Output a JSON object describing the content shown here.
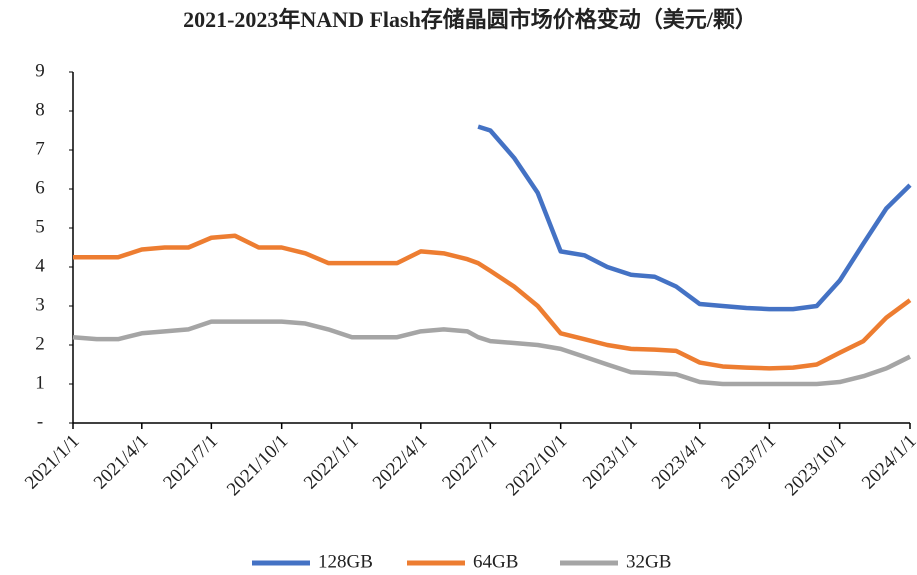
{
  "chart_data": {
    "type": "line",
    "title": "2021-2023年NAND Flash存储晶圆市场价格变动（美元/颗）",
    "x": [
      "2021/1/1",
      "2021/2/1",
      "2021/3/1",
      "2021/4/1",
      "2021/5/1",
      "2021/6/1",
      "2021/7/1",
      "2021/8/1",
      "2021/9/1",
      "2021/10/1",
      "2021/11/1",
      "2021/12/1",
      "2022/1/1",
      "2022/2/1",
      "2022/3/1",
      "2022/4/1",
      "2022/5/1",
      "2022/6/1",
      "2022/6/15",
      "2022/7/1",
      "2022/8/1",
      "2022/9/1",
      "2022/10/1",
      "2022/11/1",
      "2022/12/1",
      "2023/1/1",
      "2023/2/1",
      "2023/3/1",
      "2023/4/1",
      "2023/5/1",
      "2023/6/1",
      "2023/7/1",
      "2023/8/1",
      "2023/9/1",
      "2023/10/1",
      "2023/11/1",
      "2023/12/1",
      "2024/1/1"
    ],
    "series": [
      {
        "name": "128GB",
        "color": "#4472c4",
        "values": [
          null,
          null,
          null,
          null,
          null,
          null,
          null,
          null,
          null,
          null,
          null,
          null,
          null,
          null,
          null,
          null,
          null,
          null,
          7.6,
          7.5,
          6.8,
          5.9,
          4.4,
          4.3,
          4.0,
          3.8,
          3.75,
          3.5,
          3.05,
          3.0,
          2.95,
          2.92,
          2.92,
          3.0,
          3.65,
          4.6,
          5.5,
          6.1
        ]
      },
      {
        "name": "64GB",
        "color": "#ed7d31",
        "values": [
          4.25,
          4.25,
          4.25,
          4.45,
          4.5,
          4.5,
          4.75,
          4.8,
          4.5,
          4.5,
          4.35,
          4.1,
          4.1,
          4.1,
          4.1,
          4.4,
          4.35,
          4.2,
          4.1,
          3.9,
          3.5,
          3.0,
          2.3,
          2.15,
          2.0,
          1.9,
          1.88,
          1.85,
          1.55,
          1.45,
          1.42,
          1.4,
          1.42,
          1.5,
          1.8,
          2.1,
          2.7,
          3.15
        ]
      },
      {
        "name": "32GB",
        "color": "#a5a5a5",
        "values": [
          2.2,
          2.15,
          2.15,
          2.3,
          2.35,
          2.4,
          2.6,
          2.6,
          2.6,
          2.6,
          2.55,
          2.4,
          2.2,
          2.2,
          2.2,
          2.35,
          2.4,
          2.35,
          2.2,
          2.1,
          2.05,
          2.0,
          1.9,
          1.7,
          1.5,
          1.3,
          1.28,
          1.25,
          1.05,
          1.0,
          1.0,
          1.0,
          1.0,
          1.0,
          1.05,
          1.2,
          1.4,
          1.7
        ]
      }
    ],
    "xlim": [
      "2021/1/1",
      "2024/1/1"
    ],
    "xticks": [
      "2021/1/1",
      "2021/4/1",
      "2021/7/1",
      "2021/10/1",
      "2022/1/1",
      "2022/4/1",
      "2022/7/1",
      "2022/10/1",
      "2023/1/1",
      "2023/4/1",
      "2023/7/1",
      "2023/10/1",
      "2024/1/1"
    ],
    "ylim": [
      0,
      9
    ],
    "yticks": [
      {
        "value": 0,
        "label": "-"
      },
      1,
      2,
      3,
      4,
      5,
      6,
      7,
      8,
      9
    ],
    "legend": "bottom"
  }
}
